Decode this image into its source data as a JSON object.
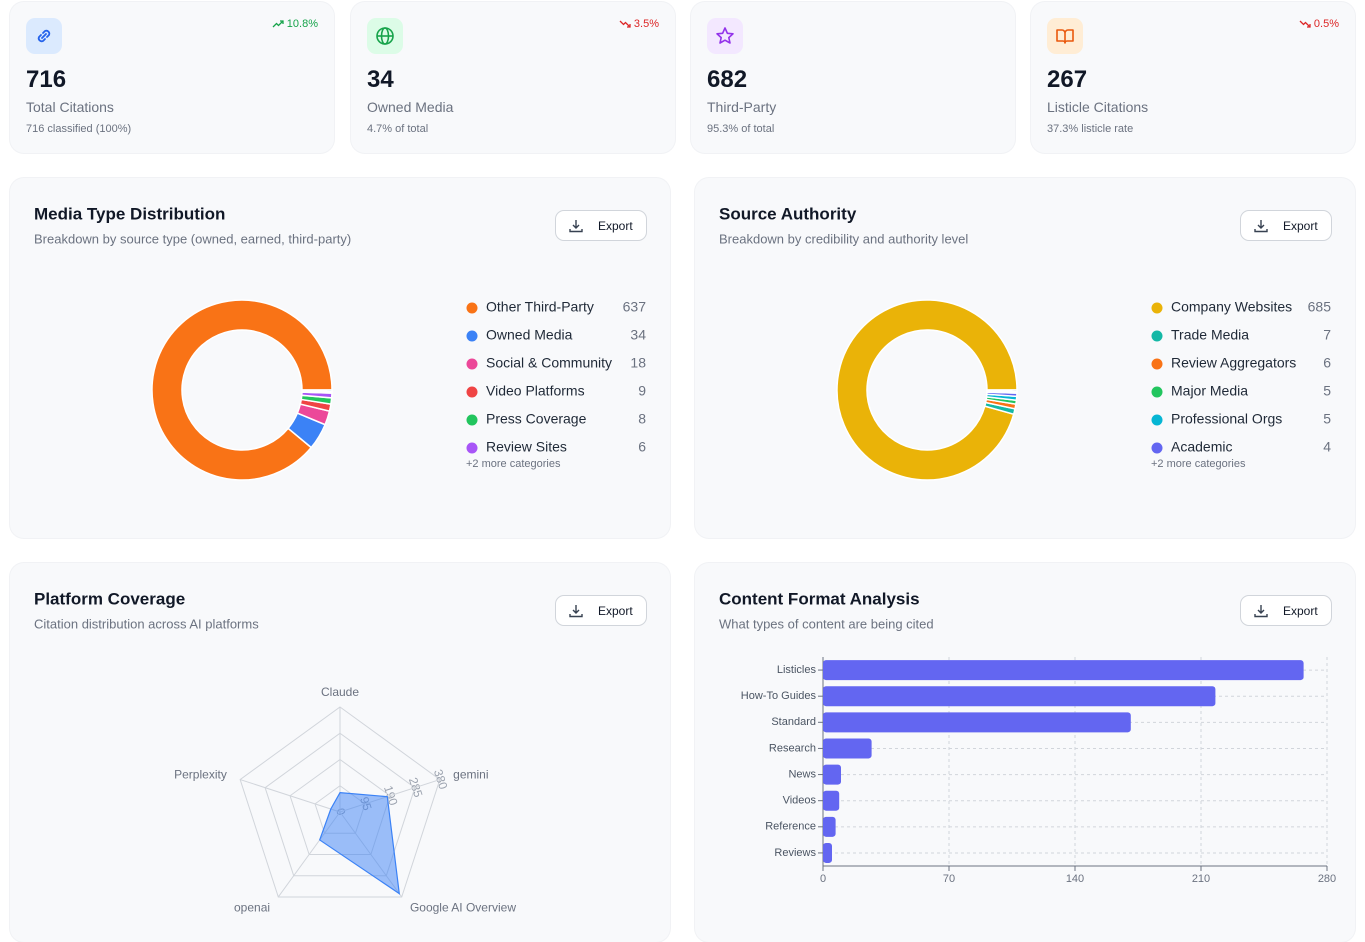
{
  "stats": [
    {
      "value": 716,
      "label": "Total Citations",
      "detail": "716 classified (100%)",
      "change": "10.8%",
      "trend": "up"
    },
    {
      "value": 34,
      "label": "Owned Media",
      "detail": "4.7% of total",
      "change": "3.5%",
      "trend": "down"
    },
    {
      "value": 682,
      "label": "Third-Party",
      "detail": "95.3% of total"
    },
    {
      "value": 267,
      "label": "Listicle Citations",
      "detail": "37.3% listicle rate",
      "change": "0.5%",
      "trend": "down"
    }
  ],
  "chart_data": [
    {
      "type": "donut",
      "title": "Media Type Distribution",
      "subtitle": "Breakdown by source type (owned, earned, third-party)",
      "button": "Export",
      "categories": [
        "Other Third-Party",
        "Owned Media",
        "Social & Community",
        "Video Platforms",
        "Press Coverage",
        "Review Sites",
        null,
        null
      ],
      "values": [
        637,
        34,
        18,
        9,
        8,
        6,
        2,
        2
      ],
      "colors": [
        "#f97316",
        "#3b82f6",
        "#ec4899",
        "#ef4444",
        "#22c55e",
        "#a855f7",
        "#64748b",
        "#0ea5e9"
      ],
      "more": "+2 more categories"
    },
    {
      "type": "donut",
      "title": "Source Authority",
      "subtitle": "Breakdown by credibility and authority level",
      "button": "Export",
      "categories": [
        "Company Websites",
        "Trade Media",
        "Review Aggregators",
        "Major Media",
        "Professional Orgs",
        "Academic",
        null,
        null
      ],
      "values": [
        685,
        7,
        6,
        5,
        5,
        4,
        2,
        2
      ],
      "colors": [
        "#eab308",
        "#14b8a6",
        "#f97316",
        "#22c55e",
        "#06b6d4",
        "#6366f1",
        "#a855f7",
        "#64748b"
      ],
      "more": "+2 more categories"
    },
    {
      "type": "radar",
      "title": "Platform Coverage",
      "subtitle": "Citation distribution across AI platforms",
      "button": "Export",
      "categories": [
        "Claude",
        "gemini",
        "Google AI Overview",
        "openai",
        "Perplexity"
      ],
      "values": [
        70,
        180,
        365,
        125,
        35
      ],
      "color": "#3b82f6",
      "rlim": [
        0,
        380
      ],
      "rticks": [
        0,
        95,
        190,
        285,
        380
      ]
    },
    {
      "type": "bar",
      "orientation": "horizontal",
      "title": "Content Format Analysis",
      "subtitle": "What types of content are being cited",
      "button": "Export",
      "categories": [
        "Listicles",
        "How-To Guides",
        "Standard",
        "Research",
        "News",
        "Videos",
        "Reference",
        "Reviews"
      ],
      "values": [
        267,
        218,
        171,
        27,
        10,
        9,
        7,
        5
      ],
      "color": "#6366f1",
      "xlim": [
        0,
        280
      ],
      "xticks": [
        0,
        70,
        140,
        210,
        280
      ],
      "grid": true
    }
  ]
}
